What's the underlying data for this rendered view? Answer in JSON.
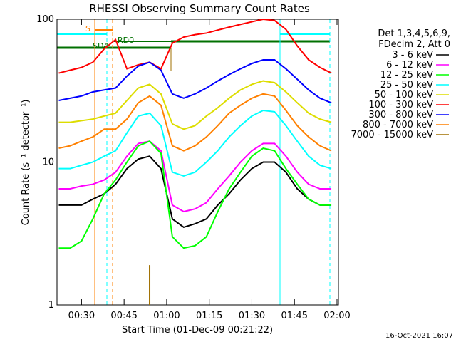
{
  "chart_data": {
    "type": "line",
    "title": "RHESSI Observing Summary Count Rates",
    "x_label": "Start Time (01-Dec-09 00:21:22)",
    "y_label": "Count Rate (s⁻¹ detector⁻¹)",
    "legend_header": [
      "Det 1,3,4,5,6,9,",
      "FDecim 2, Att 0"
    ],
    "footer": "16-Oct-2021 16:07",
    "annotations": [
      "S",
      "SD4",
      "RD0"
    ],
    "log_y": true,
    "xlim": [
      21.37,
      120.5
    ],
    "xticks": [
      {
        "value": 30,
        "label": "00:30"
      },
      {
        "value": 45,
        "label": "00:45"
      },
      {
        "value": 60,
        "label": "01:00"
      },
      {
        "value": 75,
        "label": "01:15"
      },
      {
        "value": 90,
        "label": "01:30"
      },
      {
        "value": 105,
        "label": "01:45"
      },
      {
        "value": 120,
        "label": "02:00"
      }
    ],
    "ylim": [
      1,
      100
    ],
    "yticks": [
      1,
      10,
      100
    ],
    "x": [
      22,
      26,
      30,
      34,
      38,
      42,
      46,
      50,
      54,
      58,
      62,
      66,
      70,
      74,
      78,
      82,
      86,
      90,
      94,
      98,
      102,
      106,
      110,
      114,
      118
    ],
    "series": [
      {
        "name": "3 - 6 keV",
        "color": "#000000",
        "values": [
          5,
          5,
          5,
          5.5,
          6,
          7,
          9,
          10.5,
          11,
          9,
          4,
          3.5,
          3.7,
          4,
          5,
          6,
          7.5,
          9,
          10,
          10,
          8.5,
          6.5,
          5.5,
          5,
          5
        ]
      },
      {
        "name": "6 - 12 keV",
        "color": "#ff00ff",
        "values": [
          6.5,
          6.5,
          6.8,
          7,
          7.5,
          8.5,
          11,
          13.5,
          14,
          12,
          5,
          4.5,
          4.7,
          5.2,
          6.5,
          8,
          10,
          12,
          13.5,
          13.5,
          11,
          8.5,
          7,
          6.5,
          6.5
        ]
      },
      {
        "name": "12 - 25 keV",
        "color": "#00ff00",
        "values": [
          2.5,
          2.5,
          2.8,
          4,
          6,
          7.5,
          10,
          13,
          14,
          11.5,
          3,
          2.5,
          2.6,
          3,
          4.5,
          6.5,
          8.5,
          11,
          12.5,
          12,
          9,
          7,
          5.5,
          5,
          5
        ]
      },
      {
        "name": "25 - 50 keV",
        "color": "#00ffff",
        "values": [
          9,
          9,
          9.5,
          10,
          11,
          12,
          16,
          21,
          22,
          18,
          8.5,
          8,
          8.5,
          10,
          12,
          15,
          18,
          21,
          23,
          22.5,
          18,
          14,
          11,
          9.5,
          9
        ]
      },
      {
        "name": "50 - 100 keV",
        "color": "#dddd00",
        "values": [
          19,
          19,
          19.5,
          20,
          21,
          22,
          27,
          33,
          35,
          30,
          18.5,
          17,
          18,
          21,
          24,
          28,
          32,
          35,
          37,
          36,
          31,
          26,
          22,
          20,
          19
        ]
      },
      {
        "name": "100 - 300 keV",
        "color": "#ff0000",
        "values": [
          42,
          44,
          46,
          50,
          62,
          72,
          45,
          48,
          50,
          45,
          68,
          75,
          78,
          80,
          84,
          88,
          92,
          96,
          100,
          98,
          85,
          65,
          52,
          46,
          42
        ]
      },
      {
        "name": "300 - 800 keV",
        "color": "#0000ff",
        "values": [
          27,
          28,
          29,
          31,
          32,
          33,
          40,
          47,
          50,
          44,
          30,
          28,
          30,
          33,
          37,
          41,
          45,
          49,
          52,
          52,
          45,
          38,
          32,
          28,
          26
        ]
      },
      {
        "name": "800 - 7000 keV",
        "color": "#ff8000",
        "values": [
          12.5,
          13,
          14,
          15,
          17,
          17,
          20,
          26,
          29,
          25,
          13,
          12,
          13,
          15,
          18,
          22,
          25,
          28,
          30,
          29,
          23,
          18,
          15,
          13,
          12
        ]
      },
      {
        "name": "7000 - 15000 keV",
        "color": "#a07000",
        "values": [
          null,
          null,
          null,
          null,
          null,
          null,
          null,
          null,
          1.9,
          null,
          null,
          null,
          null,
          null,
          null,
          null,
          null,
          null,
          null,
          null,
          null,
          null,
          null,
          null,
          null
        ]
      }
    ]
  }
}
